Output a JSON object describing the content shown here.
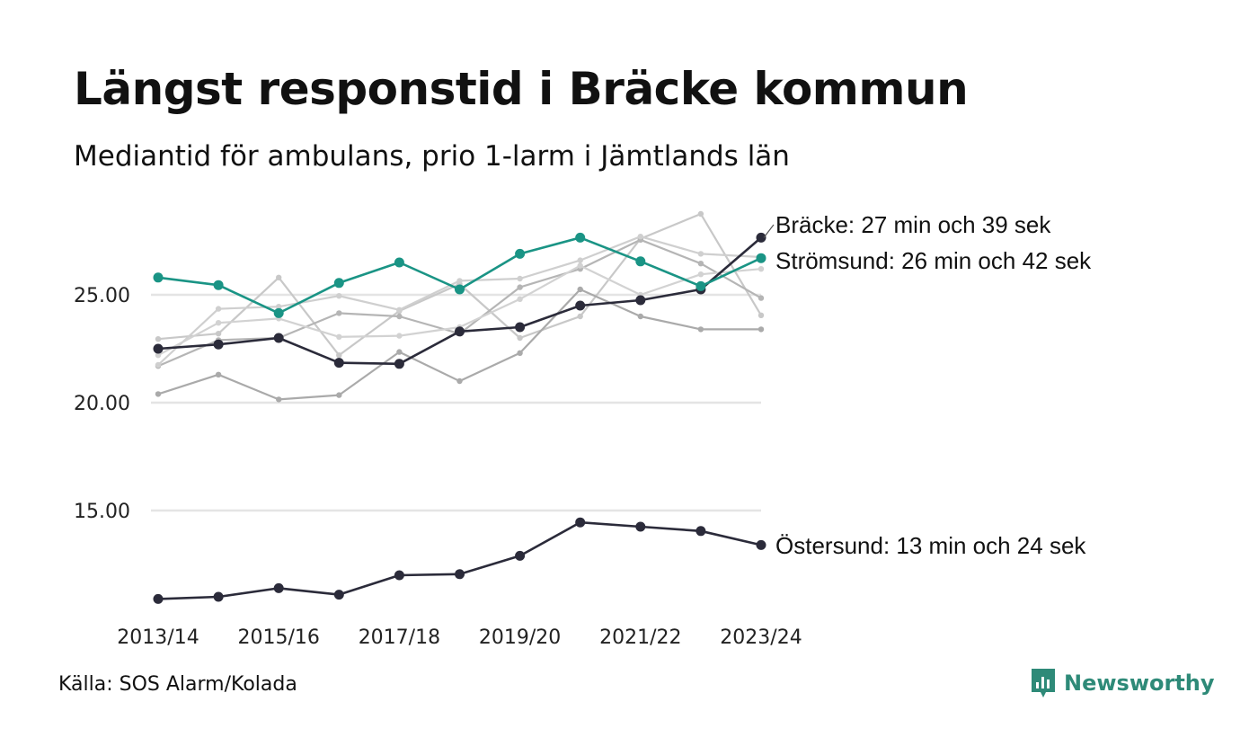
{
  "title": "Längst responstid i Bräcke kommun",
  "subtitle": "Mediantid för ambulans, prio 1-larm i Jämtlands län",
  "source": "Källa: SOS Alarm/Kolada",
  "brand": {
    "name": "Newsworthy",
    "icon": "newsworthy-logo-icon",
    "color": "#2e8a78"
  },
  "chart_data": {
    "type": "line",
    "x": [
      "2013/14",
      "2014/15",
      "2015/16",
      "2016/17",
      "2017/18",
      "2018/19",
      "2019/20",
      "2020/21",
      "2021/22",
      "2022/23",
      "2023/24"
    ],
    "x_tick_labels": [
      "2013/14",
      "2015/16",
      "2017/18",
      "2019/20",
      "2021/22",
      "2023/24"
    ],
    "y_ticks": [
      "15.00",
      "20.00",
      "25.00"
    ],
    "ylim": [
      10.5,
      29.5
    ],
    "grid": true,
    "highlight_series": [
      {
        "label": "Bräcke: 27 min och 39 sek",
        "color": "#2b2b3a",
        "values": [
          22.5,
          22.7,
          23.0,
          21.85,
          21.8,
          23.3,
          23.5,
          24.5,
          24.75,
          25.25,
          27.65
        ]
      },
      {
        "label": "Strömsund: 26 min och 42 sek",
        "color": "#1a9485",
        "values": [
          25.8,
          25.45,
          24.15,
          25.55,
          26.5,
          25.25,
          26.9,
          27.65,
          26.55,
          25.4,
          26.7
        ]
      },
      {
        "label": "Östersund: 13 min och 24 sek",
        "color": "#2b2b3a",
        "values": [
          10.9,
          11.0,
          11.4,
          11.1,
          12.0,
          12.05,
          12.9,
          14.45,
          14.25,
          14.05,
          13.4
        ]
      }
    ],
    "background_series": [
      {
        "color": "#c8c8c8",
        "values": [
          22.95,
          23.2,
          25.8,
          22.2,
          24.25,
          25.5,
          23.0,
          24.0,
          27.6,
          28.75,
          24.05
        ]
      },
      {
        "color": "#b5b5b5",
        "values": [
          21.7,
          22.9,
          23.0,
          24.15,
          24.0,
          23.2,
          25.35,
          26.2,
          27.55,
          26.45,
          24.85
        ]
      },
      {
        "color": "#aaaaaa",
        "values": [
          20.4,
          21.3,
          20.15,
          20.35,
          22.35,
          21.0,
          22.3,
          25.25,
          24.0,
          23.4,
          23.4
        ]
      },
      {
        "color": "#cfcfcf",
        "values": [
          21.75,
          24.35,
          24.45,
          24.95,
          24.3,
          25.65,
          25.75,
          26.6,
          27.7,
          26.9,
          26.75
        ]
      },
      {
        "color": "#d2d2d2",
        "values": [
          22.2,
          23.7,
          23.9,
          23.05,
          23.1,
          23.5,
          24.8,
          26.35,
          25.0,
          25.95,
          26.2
        ]
      }
    ]
  }
}
